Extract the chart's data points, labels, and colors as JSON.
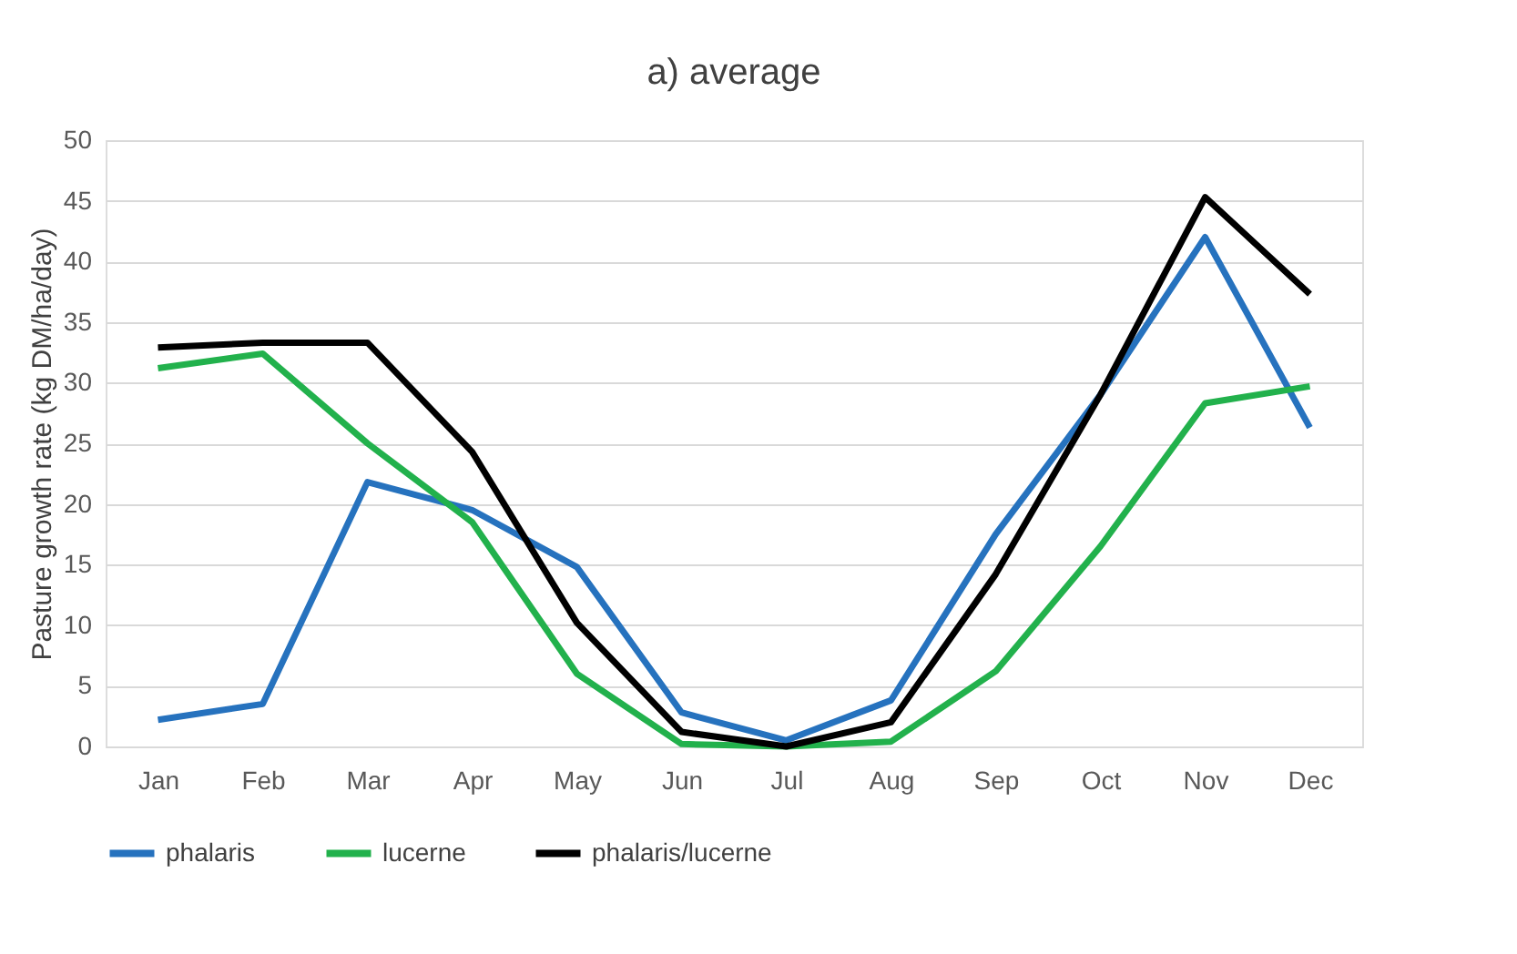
{
  "chart_data": {
    "type": "line",
    "title": "a) average",
    "ylabel": "Pasture growth rate (kg DM/ha/day)",
    "categories": [
      "Jan",
      "Feb",
      "Mar",
      "Apr",
      "May",
      "Jun",
      "Jul",
      "Aug",
      "Sep",
      "Oct",
      "Nov",
      "Dec"
    ],
    "series": [
      {
        "name": "phalaris",
        "color": "#2672be",
        "values": [
          2.2,
          3.5,
          21.8,
          19.5,
          14.8,
          2.8,
          0.5,
          3.8,
          17.5,
          29,
          42,
          26.3
        ]
      },
      {
        "name": "lucerne",
        "color": "#22b14c",
        "values": [
          31.2,
          32.4,
          25,
          18.5,
          6,
          0.2,
          0,
          0.4,
          6.2,
          16.5,
          28.3,
          29.7
        ]
      },
      {
        "name": "phalaris/lucerne",
        "color": "#000000",
        "values": [
          32.9,
          33.3,
          33.3,
          24.3,
          10.2,
          1.2,
          0,
          2,
          14.2,
          29,
          45.3,
          37.3
        ]
      }
    ],
    "ylim": [
      0,
      50
    ],
    "yticks": [
      0,
      5,
      10,
      15,
      20,
      25,
      30,
      35,
      40,
      45,
      50
    ],
    "grid": "y",
    "legend": "bottom",
    "marker": "none",
    "line_style": "solid"
  }
}
